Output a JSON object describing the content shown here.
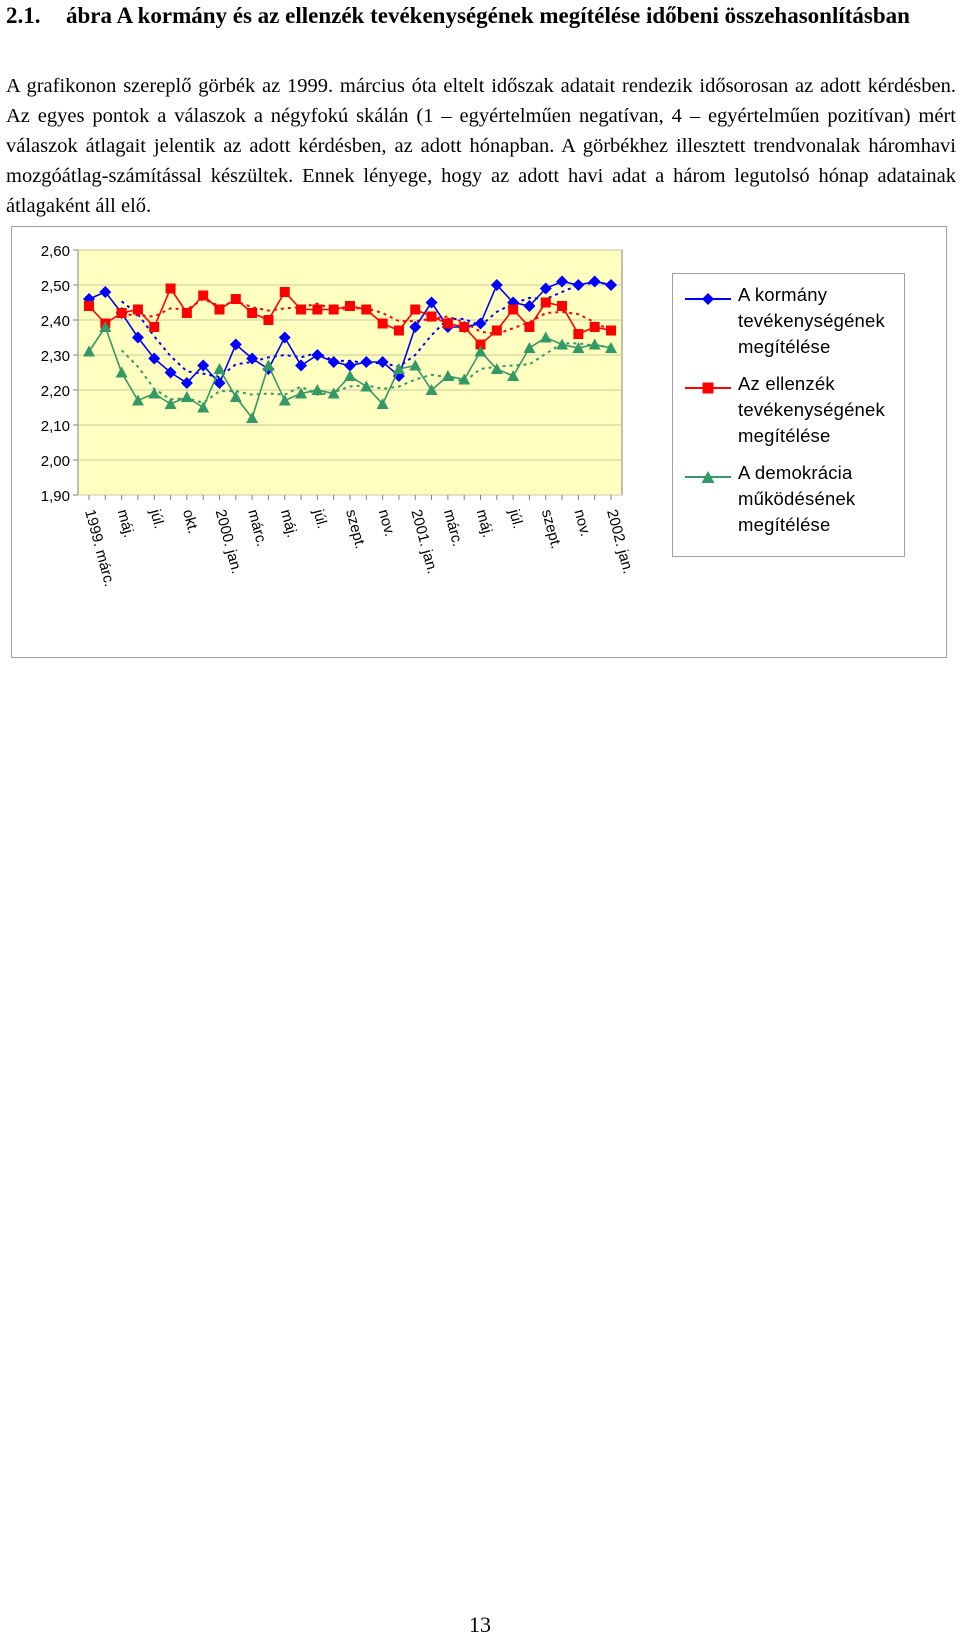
{
  "figure": {
    "number": "2.1.",
    "title": "ábra A kormány és az ellenzék tevékenységének megítélése időbeni összehasonlításban",
    "description": "A grafikonon szereplő görbék az 1999. március óta eltelt időszak adatait rendezik idősorosan az adott kérdésben. Az egyes pontok a válaszok a négyfokú skálán (1 – egyértelműen negatívan, 4 – egyértelműen pozitívan) mért válaszok átlagait jelentik az adott kérdésben, az adott hónapban. A görbékhez illesztett trendvonalak háromhavi mozgóátlag-számítással készültek. Ennek lényege, hogy az adott havi adat a három legutolsó hónap adatainak átlagaként áll elő."
  },
  "chart_data": {
    "type": "line",
    "title": "",
    "xlabel": "",
    "ylabel": "",
    "ylim": [
      1.9,
      2.6
    ],
    "yticks": [
      "2,60",
      "2,50",
      "2,40",
      "2,30",
      "2,20",
      "2,10",
      "2,00",
      "1,90"
    ],
    "xtick_labels": [
      {
        "index": 0,
        "label": "1999. márc."
      },
      {
        "index": 2,
        "label": "máj."
      },
      {
        "index": 4,
        "label": "júl."
      },
      {
        "index": 6,
        "label": "okt."
      },
      {
        "index": 8,
        "label": "2000. jan."
      },
      {
        "index": 10,
        "label": "márc."
      },
      {
        "index": 12,
        "label": "máj."
      },
      {
        "index": 14,
        "label": "júl."
      },
      {
        "index": 16,
        "label": "szept."
      },
      {
        "index": 18,
        "label": "nov."
      },
      {
        "index": 20,
        "label": "2001. jan."
      },
      {
        "index": 22,
        "label": "márc."
      },
      {
        "index": 24,
        "label": "máj."
      },
      {
        "index": 26,
        "label": "júl."
      },
      {
        "index": 28,
        "label": "szept."
      },
      {
        "index": 30,
        "label": "nov."
      },
      {
        "index": 32,
        "label": "2002. jan."
      }
    ],
    "point_count": 33,
    "plot_background": "#ffffc0",
    "grid": true,
    "legend_position": "right",
    "trendline": "3-month moving average (dotted)",
    "series": [
      {
        "name": "A kormány tevékenységének megítélése",
        "color": "#0000ff",
        "marker": "diamond",
        "values": [
          2.46,
          2.48,
          2.42,
          2.35,
          2.29,
          2.25,
          2.22,
          2.27,
          2.22,
          2.33,
          2.29,
          2.26,
          2.35,
          2.27,
          2.3,
          2.28,
          2.27,
          2.28,
          2.28,
          2.24,
          2.38,
          2.45,
          2.38,
          2.38,
          2.39,
          2.5,
          2.45,
          2.44,
          2.49,
          2.51,
          2.5,
          2.51,
          2.5
        ]
      },
      {
        "name": "Az ellenzék tevékenységének megítélése",
        "color": "#ff0000",
        "marker": "square",
        "values": [
          2.44,
          2.39,
          2.42,
          2.43,
          2.38,
          2.49,
          2.42,
          2.47,
          2.43,
          2.46,
          2.42,
          2.4,
          2.48,
          2.43,
          2.43,
          2.43,
          2.44,
          2.43,
          2.39,
          2.37,
          2.43,
          2.41,
          2.39,
          2.38,
          2.33,
          2.37,
          2.43,
          2.38,
          2.45,
          2.44,
          2.36,
          2.38,
          2.37
        ]
      },
      {
        "name": "A demokrácia működésének megítélése",
        "color": "#339966",
        "marker": "triangle",
        "values": [
          2.31,
          2.38,
          2.25,
          2.17,
          2.19,
          2.16,
          2.18,
          2.15,
          2.26,
          2.18,
          2.12,
          2.27,
          2.17,
          2.19,
          2.2,
          2.19,
          2.24,
          2.21,
          2.16,
          2.26,
          2.27,
          2.2,
          2.24,
          2.23,
          2.31,
          2.26,
          2.24,
          2.32,
          2.35,
          2.33,
          2.32,
          2.33,
          2.32
        ]
      }
    ]
  },
  "page": {
    "number": "13"
  }
}
